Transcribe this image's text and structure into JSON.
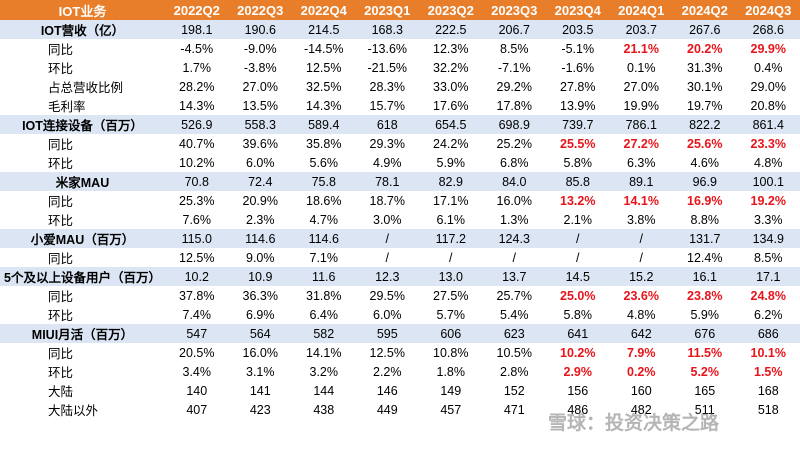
{
  "header": {
    "title": "IOT业务",
    "periods": [
      "2022Q2",
      "2022Q3",
      "2022Q4",
      "2023Q1",
      "2023Q2",
      "2023Q3",
      "2023Q4",
      "2024Q1",
      "2024Q2",
      "2024Q3"
    ]
  },
  "rows": [
    {
      "label": "IOT营收（亿）",
      "type": "head",
      "values": [
        "198.1",
        "190.6",
        "214.5",
        "168.3",
        "222.5",
        "206.7",
        "203.5",
        "203.7",
        "267.6",
        "268.6"
      ],
      "red": []
    },
    {
      "label": "同比",
      "type": "sub",
      "values": [
        "-4.5%",
        "-9.0%",
        "-14.5%",
        "-13.6%",
        "12.3%",
        "8.5%",
        "-5.1%",
        "21.1%",
        "20.2%",
        "29.9%"
      ],
      "red": [
        7,
        8,
        9
      ]
    },
    {
      "label": "环比",
      "type": "sub",
      "values": [
        "1.7%",
        "-3.8%",
        "12.5%",
        "-21.5%",
        "32.2%",
        "-7.1%",
        "-1.6%",
        "0.1%",
        "31.3%",
        "0.4%"
      ],
      "red": []
    },
    {
      "label": "占总营收比例",
      "type": "sub",
      "values": [
        "28.2%",
        "27.0%",
        "32.5%",
        "28.3%",
        "33.0%",
        "29.2%",
        "27.8%",
        "27.0%",
        "30.1%",
        "29.0%"
      ],
      "red": []
    },
    {
      "label": "毛利率",
      "type": "sub",
      "values": [
        "14.3%",
        "13.5%",
        "14.3%",
        "15.7%",
        "17.6%",
        "17.8%",
        "13.9%",
        "19.9%",
        "19.7%",
        "20.8%"
      ],
      "red": []
    },
    {
      "label": "IOT连接设备（百万）",
      "type": "head",
      "values": [
        "526.9",
        "558.3",
        "589.4",
        "618",
        "654.5",
        "698.9",
        "739.7",
        "786.1",
        "822.2",
        "861.4"
      ],
      "red": []
    },
    {
      "label": "同比",
      "type": "sub",
      "values": [
        "40.7%",
        "39.6%",
        "35.8%",
        "29.3%",
        "24.2%",
        "25.2%",
        "25.5%",
        "27.2%",
        "25.6%",
        "23.3%"
      ],
      "red": [
        6,
        7,
        8,
        9
      ]
    },
    {
      "label": "环比",
      "type": "sub",
      "values": [
        "10.2%",
        "6.0%",
        "5.6%",
        "4.9%",
        "5.9%",
        "6.8%",
        "5.8%",
        "6.3%",
        "4.6%",
        "4.8%"
      ],
      "red": []
    },
    {
      "label": "米家MAU",
      "type": "head",
      "values": [
        "70.8",
        "72.4",
        "75.8",
        "78.1",
        "82.9",
        "84.0",
        "85.8",
        "89.1",
        "96.9",
        "100.1"
      ],
      "red": []
    },
    {
      "label": "同比",
      "type": "sub",
      "values": [
        "25.3%",
        "20.9%",
        "18.6%",
        "18.7%",
        "17.1%",
        "16.0%",
        "13.2%",
        "14.1%",
        "16.9%",
        "19.2%"
      ],
      "red": [
        6,
        7,
        8,
        9
      ]
    },
    {
      "label": "环比",
      "type": "sub",
      "values": [
        "7.6%",
        "2.3%",
        "4.7%",
        "3.0%",
        "6.1%",
        "1.3%",
        "2.1%",
        "3.8%",
        "8.8%",
        "3.3%"
      ],
      "red": []
    },
    {
      "label": "小爱MAU（百万）",
      "type": "head",
      "values": [
        "115.0",
        "114.6",
        "114.6",
        "/",
        "117.2",
        "124.3",
        "/",
        "/",
        "131.7",
        "134.9"
      ],
      "red": []
    },
    {
      "label": "同比",
      "type": "sub",
      "values": [
        "12.5%",
        "9.0%",
        "7.1%",
        "/",
        "/",
        "/",
        "/",
        "/",
        "12.4%",
        "8.5%"
      ],
      "red": []
    },
    {
      "label": "5个及以上设备用户（百万）",
      "type": "head",
      "values": [
        "10.2",
        "10.9",
        "11.6",
        "12.3",
        "13.0",
        "13.7",
        "14.5",
        "15.2",
        "16.1",
        "17.1"
      ],
      "red": []
    },
    {
      "label": "同比",
      "type": "sub",
      "values": [
        "37.8%",
        "36.3%",
        "31.8%",
        "29.5%",
        "27.5%",
        "25.7%",
        "25.0%",
        "23.6%",
        "23.8%",
        "24.8%"
      ],
      "red": [
        6,
        7,
        8,
        9
      ]
    },
    {
      "label": "环比",
      "type": "sub",
      "values": [
        "7.4%",
        "6.9%",
        "6.4%",
        "6.0%",
        "5.7%",
        "5.4%",
        "5.8%",
        "4.8%",
        "5.9%",
        "6.2%"
      ],
      "red": []
    },
    {
      "label": "MIUI月活（百万）",
      "type": "head",
      "values": [
        "547",
        "564",
        "582",
        "595",
        "606",
        "623",
        "641",
        "642",
        "676",
        "686"
      ],
      "red": []
    },
    {
      "label": "同比",
      "type": "sub",
      "values": [
        "20.5%",
        "16.0%",
        "14.1%",
        "12.5%",
        "10.8%",
        "10.5%",
        "10.2%",
        "7.9%",
        "11.5%",
        "10.1%"
      ],
      "red": [
        6,
        7,
        8,
        9
      ]
    },
    {
      "label": "环比",
      "type": "sub",
      "values": [
        "3.4%",
        "3.1%",
        "3.2%",
        "2.2%",
        "1.8%",
        "2.8%",
        "2.9%",
        "0.2%",
        "5.2%",
        "1.5%"
      ],
      "red": [
        6,
        7,
        8,
        9
      ]
    },
    {
      "label": "大陆",
      "type": "sub",
      "values": [
        "140",
        "141",
        "144",
        "146",
        "149",
        "152",
        "156",
        "160",
        "165",
        "168"
      ],
      "red": []
    },
    {
      "label": "大陆以外",
      "type": "sub",
      "values": [
        "407",
        "423",
        "438",
        "449",
        "457",
        "471",
        "486",
        "482",
        "511",
        "518"
      ],
      "red": []
    }
  ],
  "watermark": "雪球：投资决策之路"
}
